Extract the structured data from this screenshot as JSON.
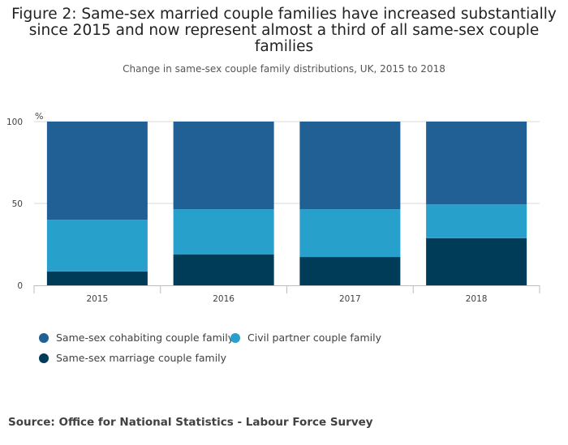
{
  "chart_data": {
    "type": "bar",
    "stacked": true,
    "title": "Figure 2: Same-sex married couple families have increased substantially since 2015 and now represent almost a third of all same-sex couple families",
    "subtitle": "Change in same-sex couple family distributions, UK, 2015 to 2018",
    "ylabel": "%",
    "xlabel": "",
    "ylim": [
      0,
      100
    ],
    "yticks": [
      0,
      50,
      100
    ],
    "categories": [
      "2015",
      "2016",
      "2017",
      "2018"
    ],
    "series": [
      {
        "name": "Same-sex marriage couple family",
        "color": "#003c57",
        "values": [
          8.5,
          18.8,
          17.3,
          28.8
        ]
      },
      {
        "name": "Civil partner couple family",
        "color": "#27a0cc",
        "values": [
          31.5,
          27.7,
          29.2,
          20.6
        ]
      },
      {
        "name": "Same-sex cohabiting couple family",
        "color": "#206095",
        "values": [
          60.0,
          53.5,
          53.5,
          50.6
        ]
      }
    ],
    "legend": [
      {
        "name": "Same-sex cohabiting couple family",
        "color": "#206095"
      },
      {
        "name": "Civil partner couple family",
        "color": "#27a0cc"
      },
      {
        "name": "Same-sex marriage couple family",
        "color": "#003c57"
      }
    ],
    "legend_position": "bottom-left",
    "grid": true
  },
  "source": "Source: Office for National Statistics - Labour Force Survey"
}
